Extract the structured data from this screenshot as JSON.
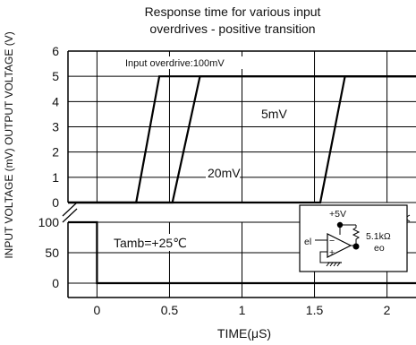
{
  "chart_data": {
    "type": "line",
    "title_line1": "Response time for various input",
    "title_line2": "overdrives - positive transition",
    "xlabel": "TIME(μS)",
    "ylabel": "INPUT VOLTAGE (mV)  OUTPUT VOLTAGE (V)",
    "x_ticks": [
      "0",
      "0.5",
      "1",
      "1.5",
      "2"
    ],
    "xlim": [
      -0.2,
      2.2
    ],
    "upper_y_ticks": [
      "6",
      "5",
      "4",
      "3",
      "2",
      "1",
      "0"
    ],
    "upper_ylim": [
      0,
      6
    ],
    "lower_y_ticks": [
      "100",
      "50",
      "0"
    ],
    "lower_ylim": [
      -20,
      110
    ],
    "grid": true,
    "output_series": [
      {
        "name": "Input overdrive:100mV",
        "x": [
          -0.2,
          0.27,
          0.43,
          2.2
        ],
        "y": [
          0,
          0,
          5,
          5
        ]
      },
      {
        "name": "20mV",
        "x": [
          -0.2,
          0.52,
          0.71,
          2.2
        ],
        "y": [
          0,
          0,
          5,
          5
        ]
      },
      {
        "name": "5mV",
        "x": [
          -0.2,
          1.54,
          1.71,
          2.2
        ],
        "y": [
          0,
          0,
          5,
          5
        ]
      }
    ],
    "input_series": {
      "x": [
        -0.2,
        0,
        0,
        2.2
      ],
      "y": [
        100,
        100,
        0,
        0
      ]
    },
    "annotations": {
      "overdrive_label": "Input overdrive:100mV",
      "label_20mV": "20mV",
      "label_5mV": "5mV",
      "tamb": "Tamb=+25℃"
    },
    "circuit": {
      "supply": "+5V",
      "resistor": "5.1kΩ",
      "input": "el",
      "output": "eo",
      "minus": "−",
      "plus": "+"
    }
  }
}
